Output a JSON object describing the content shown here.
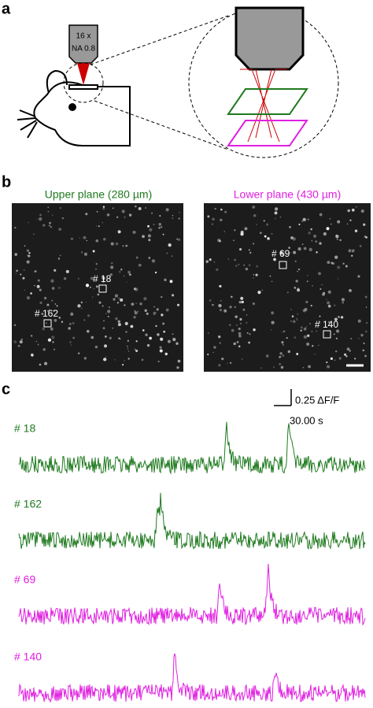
{
  "panel_labels": [
    "a",
    "b",
    "c"
  ],
  "objective": {
    "magnification": "16 x",
    "aperture": "NA 0.8"
  },
  "images": [
    {
      "title": "Upper plane (280 µm)",
      "color": "#1f7a1f",
      "rois": [
        "# 18",
        "# 162"
      ]
    },
    {
      "title": "Lower plane (430 µm)",
      "color": "#e020e0",
      "rois": [
        "# 69",
        "# 140"
      ]
    }
  ],
  "scale_bar": {
    "amplitude": "0.25 ΔF/F",
    "time": "30.00 s"
  },
  "traces": [
    {
      "label": "# 18",
      "color": "#1f7a1f"
    },
    {
      "label": "# 162",
      "color": "#1f7a1f"
    },
    {
      "label": "# 69",
      "color": "#e020e0"
    },
    {
      "label": "# 140",
      "color": "#e020e0"
    }
  ]
}
